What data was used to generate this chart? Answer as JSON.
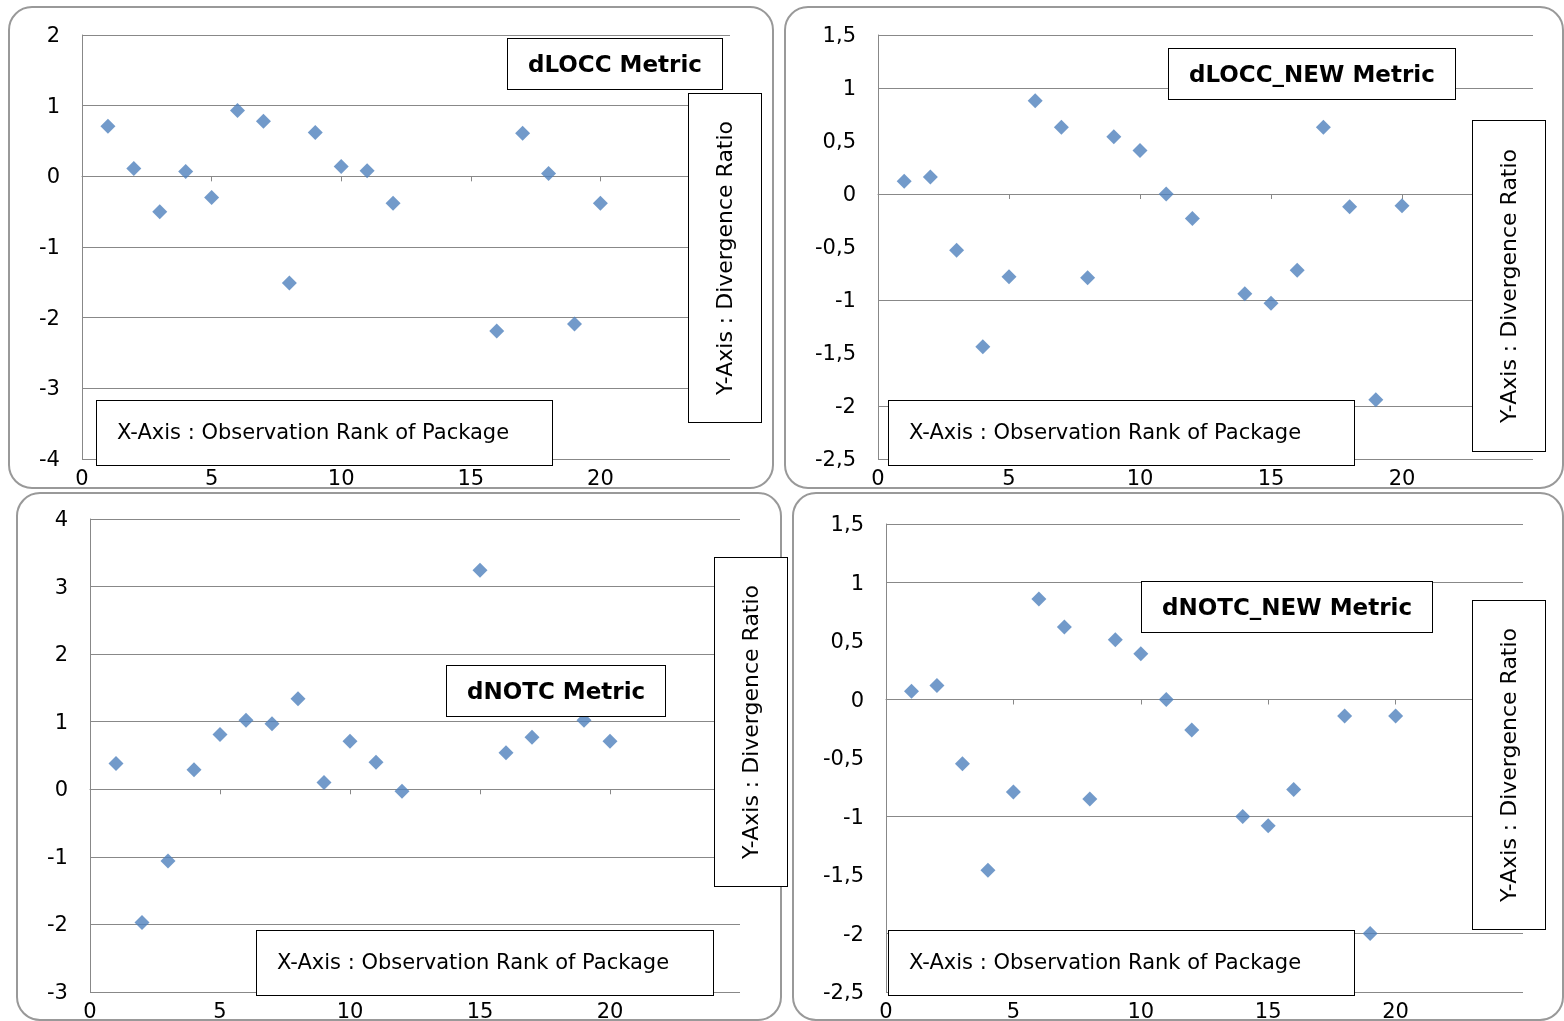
{
  "chart_data": [
    {
      "type": "scatter",
      "title": "dLOCC Metric",
      "xlabel": "X-Axis : Observation Rank of Package",
      "ylabel": "Y-Axis : Divergence Ratio",
      "marker": "diamond",
      "grid": "y",
      "xlim": [
        0,
        25
      ],
      "xticks": [
        0,
        5,
        10,
        15,
        20
      ],
      "ylim": [
        -4,
        2
      ],
      "yticks": [
        -4,
        -3,
        -2,
        -1,
        0,
        1,
        2
      ],
      "series": [
        {
          "color": "#4f81bd",
          "x": [
            1,
            2,
            3,
            4,
            5,
            6,
            7,
            8,
            9,
            10,
            11,
            12,
            16,
            17,
            18,
            19,
            20
          ],
          "values": [
            0.71,
            0.11,
            -0.5,
            0.07,
            -0.3,
            0.93,
            0.78,
            -1.51,
            0.62,
            0.14,
            0.08,
            -0.38,
            -2.19,
            0.61,
            0.04,
            -2.09,
            -0.38
          ]
        }
      ]
    },
    {
      "type": "scatter",
      "title": "dLOCC_NEW Metric",
      "xlabel": "X-Axis : Observation Rank of Package",
      "ylabel": "Y-Axis : Divergence Ratio",
      "marker": "diamond",
      "grid": "y",
      "xlim": [
        0,
        25
      ],
      "xticks": [
        0,
        5,
        10,
        15,
        20
      ],
      "ylim": [
        -2.5,
        1.5
      ],
      "yticks": [
        {
          "value": -2.5,
          "label": "-2,5"
        },
        -2,
        {
          "value": -1.5,
          "label": "-1,5"
        },
        -1,
        {
          "value": -0.5,
          "label": "-0,5"
        },
        0,
        {
          "value": 0.5,
          "label": "0,5"
        },
        1,
        {
          "value": 1.5,
          "label": "1,5"
        }
      ],
      "series": [
        {
          "color": "#4f81bd",
          "x": [
            1,
            2,
            3,
            4,
            5,
            6,
            7,
            8,
            9,
            10,
            11,
            12,
            14,
            15,
            16,
            17,
            18,
            19,
            20
          ],
          "values": [
            0.12,
            0.16,
            -0.53,
            -1.44,
            -0.78,
            0.88,
            0.63,
            -0.79,
            0.54,
            0.41,
            0,
            -0.23,
            -0.94,
            -1.03,
            -0.72,
            0.63,
            -0.12,
            -1.94,
            -0.11
          ]
        }
      ]
    },
    {
      "type": "scatter",
      "title": "dNOTC Metric",
      "xlabel": "X-Axis : Observation Rank of Package",
      "ylabel": "Y-Axis : Divergence Ratio",
      "marker": "diamond",
      "grid": "y",
      "xlim": [
        0,
        25
      ],
      "xticks": [
        0,
        5,
        10,
        15,
        20
      ],
      "ylim": [
        -3,
        4
      ],
      "yticks": [
        -3,
        -2,
        -1,
        0,
        1,
        2,
        3,
        4
      ],
      "series": [
        {
          "color": "#4f81bd",
          "x": [
            1,
            2,
            3,
            4,
            5,
            6,
            7,
            8,
            9,
            10,
            11,
            12,
            15,
            16,
            17,
            19,
            20
          ],
          "values": [
            0.38,
            -1.97,
            -1.06,
            0.29,
            0.81,
            1.02,
            0.97,
            1.34,
            0.1,
            0.71,
            0.4,
            -0.03,
            3.24,
            0.54,
            0.77,
            1.02,
            0.71
          ]
        }
      ]
    },
    {
      "type": "scatter",
      "title": "dNOTC_NEW Metric",
      "xlabel": "X-Axis : Observation Rank of Package",
      "ylabel": "Y-Axis : Divergence Ratio",
      "marker": "diamond",
      "grid": "y",
      "xlim": [
        0,
        25
      ],
      "xticks": [
        0,
        5,
        10,
        15,
        20
      ],
      "ylim": [
        -2.5,
        1.5
      ],
      "yticks": [
        {
          "value": -2.5,
          "label": "-2,5"
        },
        -2,
        {
          "value": -1.5,
          "label": "-1,5"
        },
        -1,
        {
          "value": -0.5,
          "label": "-0,5"
        },
        0,
        {
          "value": 0.5,
          "label": "0,5"
        },
        1,
        {
          "value": 1.5,
          "label": "1,5"
        }
      ],
      "series": [
        {
          "color": "#4f81bd",
          "x": [
            1,
            2,
            3,
            4,
            5,
            6,
            7,
            8,
            9,
            10,
            11,
            12,
            14,
            15,
            16,
            18,
            19,
            20
          ],
          "values": [
            0.07,
            0.12,
            -0.55,
            -1.46,
            -0.79,
            0.86,
            0.62,
            -0.85,
            0.51,
            0.39,
            0,
            -0.26,
            -1.0,
            -1.08,
            -0.77,
            -0.14,
            -2.0,
            -0.14
          ]
        }
      ]
    }
  ]
}
